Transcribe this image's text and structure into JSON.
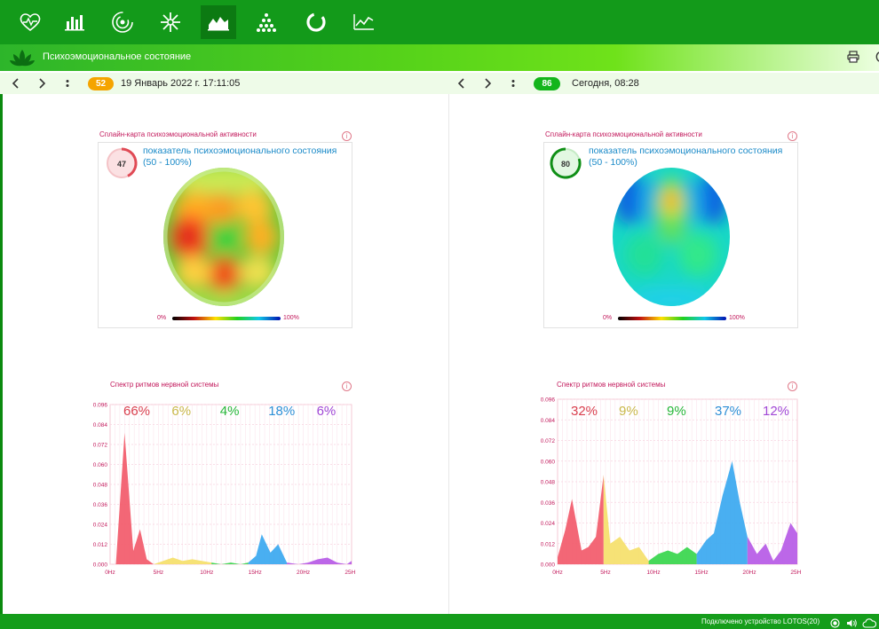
{
  "app": {
    "section_title": "Психоэмоциональное состояние"
  },
  "toolbar_icons": [
    "heart-rate-icon",
    "bar-chart-icon",
    "spiral-icon",
    "snowflake-icon",
    "area-chart-icon",
    "triangle-dots-icon",
    "circle-progress-icon",
    "line-chart-icon"
  ],
  "colors": {
    "primary": "#139a1a",
    "accent_orange": "#f5a400",
    "accent_green": "#14b51c",
    "pink": "#c2185b",
    "blue": "#1a8ac8"
  },
  "left": {
    "badge": "52",
    "date": "19 Январь 2022 г. 17:11:05",
    "map_title": "Сплайн-карта психоэмоциональной активности",
    "score": "47",
    "indicator_line1": "показатель психоэмоционального состояния",
    "indicator_line2": "(50 - 100%)",
    "scale_min": "0%",
    "scale_max": "100%",
    "spectrum_title": "Спектр ритмов нервной системы",
    "percents": [
      "66%",
      "6%",
      "4%",
      "18%",
      "6%"
    ]
  },
  "right": {
    "badge": "86",
    "date": "Сегодня, 08:28",
    "map_title": "Сплайн-карта психоэмоциональной активности",
    "score": "80",
    "indicator_line1": "показатель психоэмоционального состояния",
    "indicator_line2": "(50 - 100%)",
    "scale_min": "0%",
    "scale_max": "100%",
    "spectrum_title": "Спектр ритмов нервной системы",
    "percents": [
      "32%",
      "9%",
      "9%",
      "37%",
      "12%"
    ]
  },
  "footer": {
    "status": "Подключено устройство LOTOS(20)"
  },
  "chart_data": [
    {
      "type": "area",
      "title": "Спектр ритмов нервной системы",
      "ylim": [
        0,
        0.096
      ],
      "xlim": [
        0,
        25
      ],
      "y_ticks": [
        "0.000",
        "0.012",
        "0.024",
        "0.036",
        "0.048",
        "0.060",
        "0.072",
        "0.084",
        "0.096"
      ],
      "x_ticks": [
        "0Hz",
        "5Hz",
        "10Hz",
        "15Hz",
        "20Hz",
        "25Hz"
      ],
      "band_colors": [
        "#f25a6a",
        "#f5e06a",
        "#37d64c",
        "#3aa8f0",
        "#b65ae6"
      ],
      "band_percent_colors": [
        "#d9404f",
        "#c9b84a",
        "#27b83a",
        "#2d8fd6",
        "#a048d6"
      ],
      "bands": [
        {
          "percent": "66%",
          "points": [
            [
              0,
              0.0
            ],
            [
              0.6,
              0.0
            ],
            [
              1.5,
              0.079
            ],
            [
              2.4,
              0.008
            ],
            [
              3.1,
              0.021
            ],
            [
              3.8,
              0.003
            ],
            [
              4.5,
              0.0
            ]
          ]
        },
        {
          "percent": "6%",
          "points": [
            [
              4.5,
              0.0
            ],
            [
              5.5,
              0.002
            ],
            [
              6.5,
              0.004
            ],
            [
              7.5,
              0.002
            ],
            [
              8.5,
              0.003
            ],
            [
              9.5,
              0.002
            ],
            [
              10.5,
              0.001
            ]
          ]
        },
        {
          "percent": "4%",
          "points": [
            [
              10.5,
              0.001
            ],
            [
              11.5,
              0.0
            ],
            [
              12.5,
              0.001
            ],
            [
              13.5,
              0.0
            ],
            [
              14.3,
              0.001
            ]
          ]
        },
        {
          "percent": "18%",
          "points": [
            [
              14.3,
              0.001
            ],
            [
              15.1,
              0.005
            ],
            [
              15.7,
              0.018
            ],
            [
              16.6,
              0.007
            ],
            [
              17.4,
              0.012
            ],
            [
              18.3,
              0.001
            ]
          ]
        },
        {
          "percent": "6%",
          "points": [
            [
              18.3,
              0.001
            ],
            [
              19.5,
              0.0
            ],
            [
              20.5,
              0.001
            ],
            [
              21.5,
              0.003
            ],
            [
              22.5,
              0.004
            ],
            [
              23.5,
              0.001
            ],
            [
              24.5,
              0.0
            ],
            [
              25,
              0.002
            ]
          ]
        }
      ]
    },
    {
      "type": "area",
      "title": "Спектр ритмов нервной системы",
      "ylim": [
        0,
        0.096
      ],
      "xlim": [
        0,
        25
      ],
      "y_ticks": [
        "0.000",
        "0.012",
        "0.024",
        "0.036",
        "0.048",
        "0.060",
        "0.072",
        "0.084",
        "0.096"
      ],
      "x_ticks": [
        "0Hz",
        "5Hz",
        "10Hz",
        "15Hz",
        "20Hz",
        "25Hz"
      ],
      "band_colors": [
        "#f25a6a",
        "#f5e06a",
        "#37d64c",
        "#3aa8f0",
        "#b65ae6"
      ],
      "band_percent_colors": [
        "#d9404f",
        "#c9b84a",
        "#27b83a",
        "#2d8fd6",
        "#a048d6"
      ],
      "bands": [
        {
          "percent": "32%",
          "points": [
            [
              0,
              0.004
            ],
            [
              0.8,
              0.02
            ],
            [
              1.5,
              0.038
            ],
            [
              2.5,
              0.008
            ],
            [
              3.2,
              0.01
            ],
            [
              4.0,
              0.016
            ],
            [
              4.8,
              0.052
            ]
          ]
        },
        {
          "percent": "9%",
          "points": [
            [
              4.8,
              0.052
            ],
            [
              5.5,
              0.012
            ],
            [
              6.5,
              0.016
            ],
            [
              7.5,
              0.008
            ],
            [
              8.5,
              0.01
            ],
            [
              9.5,
              0.002
            ]
          ]
        },
        {
          "percent": "9%",
          "points": [
            [
              9.5,
              0.002
            ],
            [
              10.5,
              0.006
            ],
            [
              11.5,
              0.008
            ],
            [
              12.5,
              0.006
            ],
            [
              13.5,
              0.01
            ],
            [
              14.5,
              0.006
            ]
          ]
        },
        {
          "percent": "37%",
          "points": [
            [
              14.5,
              0.006
            ],
            [
              15.5,
              0.014
            ],
            [
              16.3,
              0.018
            ],
            [
              17.2,
              0.04
            ],
            [
              18.2,
              0.06
            ],
            [
              19.0,
              0.036
            ],
            [
              19.8,
              0.016
            ]
          ]
        },
        {
          "percent": "12%",
          "points": [
            [
              19.8,
              0.016
            ],
            [
              20.8,
              0.006
            ],
            [
              21.7,
              0.012
            ],
            [
              22.5,
              0.002
            ],
            [
              23.3,
              0.008
            ],
            [
              24.3,
              0.024
            ],
            [
              25,
              0.018
            ]
          ]
        }
      ]
    }
  ]
}
